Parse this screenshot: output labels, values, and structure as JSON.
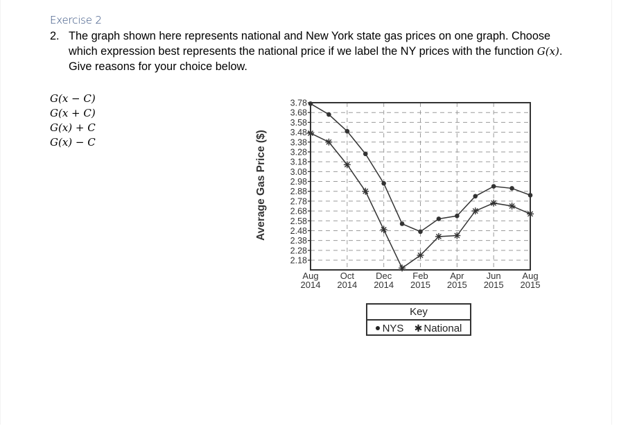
{
  "heading": "Exercise 2",
  "question": {
    "number": "2.",
    "text_before": "The graph shown here represents national and New York state gas prices on one graph. Choose which expression best represents the national price if we label the NY prices with the function ",
    "function_label": "G(x)",
    "text_after": ".  Give reasons for your choice below."
  },
  "choices": [
    {
      "label": "G(x − C)"
    },
    {
      "label": "G(x + C)"
    },
    {
      "label": "G(x) + C"
    },
    {
      "label": "G(x) − C"
    }
  ],
  "legend": {
    "title": "Key",
    "nys_label": "NYS",
    "national_label": "National",
    "nys_icon": "filled-circle-marker",
    "national_icon": "asterisk-marker"
  },
  "colors": {
    "line": "#333333",
    "grid": "#9a9a9a",
    "heading": "#2f4b7c"
  },
  "chart_data": {
    "type": "line",
    "title": "",
    "xlabel": "",
    "ylabel": "Average Gas Price ($)",
    "ylim": [
      2.08,
      3.78
    ],
    "yticks": [
      3.78,
      3.68,
      3.58,
      3.48,
      3.38,
      3.28,
      3.18,
      3.08,
      2.98,
      2.88,
      2.78,
      2.68,
      2.58,
      2.48,
      2.38,
      2.28,
      2.18
    ],
    "x": [
      "Aug 2014",
      "Sep 2014",
      "Oct 2014",
      "Nov 2014",
      "Dec 2014",
      "Jan 2015",
      "Feb 2015",
      "Mar 2015",
      "Apr 2015",
      "May 2015",
      "Jun 2015",
      "Jul 2015",
      "Aug 2015"
    ],
    "xtick_labels": [
      {
        "month": "Aug",
        "year": "2014",
        "index": 0
      },
      {
        "month": "Oct",
        "year": "2014",
        "index": 2
      },
      {
        "month": "Dec",
        "year": "2014",
        "index": 4
      },
      {
        "month": "Feb",
        "year": "2015",
        "index": 6
      },
      {
        "month": "Apr",
        "year": "2015",
        "index": 8
      },
      {
        "month": "Jun",
        "year": "2015",
        "index": 10
      },
      {
        "month": "Aug",
        "year": "2015",
        "index": 12
      }
    ],
    "grid": true,
    "legend_position": "below",
    "series": [
      {
        "name": "NYS",
        "marker": "circle",
        "values": [
          3.77,
          3.66,
          3.49,
          3.26,
          2.96,
          2.55,
          2.47,
          2.6,
          2.63,
          2.83,
          2.93,
          2.91,
          2.84
        ]
      },
      {
        "name": "National",
        "marker": "asterisk",
        "values": [
          3.47,
          3.38,
          3.15,
          2.88,
          2.49,
          2.1,
          2.23,
          2.42,
          2.43,
          2.68,
          2.76,
          2.73,
          2.65
        ]
      }
    ]
  }
}
